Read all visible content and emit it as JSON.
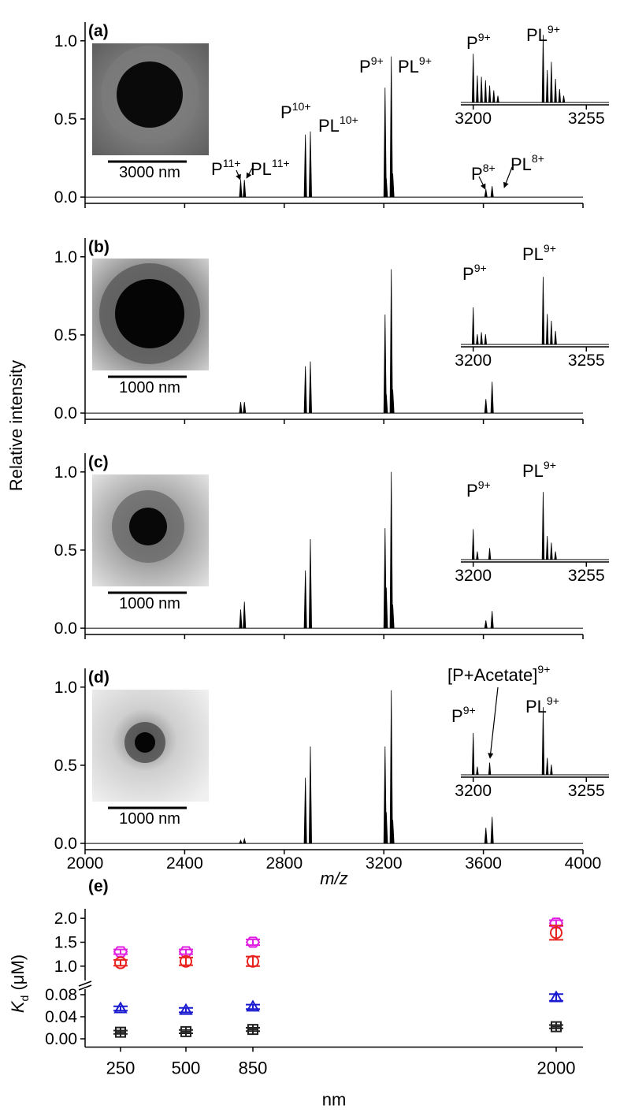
{
  "chart_data": [
    {
      "type": "stem",
      "panel_label": "(a)",
      "image_scale_bar": "3000 nm",
      "color": "#000000",
      "x": [
        2625,
        2640,
        2885,
        2905,
        3205,
        3210,
        3230,
        3236,
        3610,
        3635
      ],
      "values": [
        0.11,
        0.11,
        0.4,
        0.42,
        0.7,
        0.12,
        0.9,
        0.15,
        0.05,
        0.07
      ],
      "xlim": [
        2000,
        4000
      ],
      "xticks": [
        2000,
        2400,
        2800,
        3200,
        3600,
        4000
      ],
      "xtick_labels": false,
      "ylim": [
        -0.04,
        1.12
      ],
      "yticks": [
        {
          "value": 0,
          "label": "0.0"
        },
        0.5,
        {
          "value": 1,
          "label": "1.0"
        }
      ],
      "annotations": [
        {
          "text": "P",
          "sup": "11+"
        },
        {
          "text": "PL",
          "sup": "11+"
        },
        {
          "text": "P",
          "sup": "10+"
        },
        {
          "text": "PL",
          "sup": "10+"
        },
        {
          "text": "P",
          "sup": "9+"
        },
        {
          "text": "PL",
          "sup": "9+"
        },
        {
          "text": "P",
          "sup": "8+"
        },
        {
          "text": "PL",
          "sup": "8+"
        }
      ]
    },
    {
      "type": "stem",
      "color": "#000000",
      "x": [
        3200,
        3202,
        3204,
        3206,
        3208,
        3210,
        3212,
        3234,
        3236,
        3238,
        3240,
        3242,
        3244
      ],
      "values": [
        0.72,
        0.4,
        0.38,
        0.33,
        0.25,
        0.18,
        0.1,
        1.0,
        0.48,
        0.6,
        0.35,
        0.2,
        0.1
      ],
      "xlim": [
        3194,
        3266
      ],
      "xticks": [
        3200,
        3255
      ],
      "ylim": [
        0,
        1.05
      ],
      "annotations": [
        {
          "text": "P",
          "sup": "9+"
        },
        {
          "text": "PL",
          "sup": "9+"
        }
      ]
    },
    {
      "type": "stem",
      "panel_label": "(b)",
      "image_scale_bar": "1000 nm",
      "color": "#000000",
      "ylabel": "Relative intensity",
      "x": [
        2625,
        2640,
        2885,
        2905,
        3205,
        3210,
        3230,
        3236,
        3610,
        3635
      ],
      "values": [
        0.07,
        0.07,
        0.3,
        0.33,
        0.63,
        0.12,
        0.92,
        0.15,
        0.09,
        0.2
      ],
      "xlim": [
        2000,
        4000
      ],
      "xticks": [
        2000,
        2400,
        2800,
        3200,
        3600,
        4000
      ],
      "xtick_labels": false,
      "ylim": [
        -0.04,
        1.12
      ],
      "yticks": [
        {
          "value": 0,
          "label": "0.0"
        },
        0.5,
        {
          "value": 1,
          "label": "1.0"
        }
      ]
    },
    {
      "type": "stem",
      "color": "#000000",
      "x": [
        3200,
        3202,
        3204,
        3206,
        3234,
        3236,
        3238,
        3240
      ],
      "values": [
        0.55,
        0.15,
        0.18,
        0.15,
        1.0,
        0.45,
        0.35,
        0.2
      ],
      "xlim": [
        3194,
        3266
      ],
      "xticks": [
        3200,
        3255
      ],
      "ylim": [
        0,
        1.05
      ],
      "annotations": [
        {
          "text": "P",
          "sup": "9+"
        },
        {
          "text": "PL",
          "sup": "9+"
        }
      ]
    },
    {
      "type": "stem",
      "panel_label": "(c)",
      "image_scale_bar": "1000 nm",
      "color": "#000000",
      "x": [
        2625,
        2640,
        2885,
        2905,
        3205,
        3210,
        3230,
        3236,
        3610,
        3635
      ],
      "values": [
        0.12,
        0.17,
        0.37,
        0.57,
        0.64,
        0.26,
        1.0,
        0.15,
        0.05,
        0.11
      ],
      "xlim": [
        2000,
        4000
      ],
      "xticks": [
        2000,
        2400,
        2800,
        3200,
        3600,
        4000
      ],
      "xtick_labels": false,
      "ylim": [
        -0.04,
        1.12
      ],
      "yticks": [
        {
          "value": 0,
          "label": "0.0"
        },
        0.5,
        {
          "value": 1,
          "label": "1.0"
        }
      ]
    },
    {
      "type": "stem",
      "color": "#000000",
      "x": [
        3200,
        3202,
        3208,
        3234,
        3236,
        3238,
        3240
      ],
      "values": [
        0.45,
        0.12,
        0.17,
        1.0,
        0.35,
        0.25,
        0.12
      ],
      "xlim": [
        3194,
        3266
      ],
      "xticks": [
        3200,
        3255
      ],
      "ylim": [
        0,
        1.05
      ],
      "annotations": [
        {
          "text": "P",
          "sup": "9+"
        },
        {
          "text": "PL",
          "sup": "9+"
        }
      ]
    },
    {
      "type": "stem",
      "panel_label": "(d)",
      "image_scale_bar": "1000 nm",
      "color": "#000000",
      "xlabel": "m/z",
      "x": [
        2625,
        2640,
        2885,
        2905,
        3205,
        3210,
        3230,
        3236,
        3610,
        3635
      ],
      "values": [
        0.02,
        0.03,
        0.42,
        0.62,
        0.62,
        0.2,
        0.98,
        0.15,
        0.1,
        0.17
      ],
      "xlim": [
        2000,
        4000
      ],
      "xticks": [
        2000,
        2400,
        2800,
        3200,
        3600,
        4000
      ],
      "xtick_labels": true,
      "ylim": [
        -0.04,
        1.12
      ],
      "yticks": [
        {
          "value": 0,
          "label": "0.0"
        },
        0.5,
        {
          "value": 1,
          "label": "1.0"
        }
      ]
    },
    {
      "type": "stem",
      "color": "#000000",
      "x": [
        3200,
        3202,
        3208,
        3234,
        3236,
        3238
      ],
      "values": [
        0.62,
        0.12,
        0.18,
        1.0,
        0.25,
        0.15
      ],
      "xlim": [
        3194,
        3266
      ],
      "xticks": [
        3200,
        3255
      ],
      "ylim": [
        0,
        1.05
      ],
      "annotations": [
        {
          "text": "[P+Acetate]",
          "sup": "9+"
        },
        {
          "text": "P",
          "sup": "9+"
        },
        {
          "text": "PL",
          "sup": "9+"
        }
      ]
    },
    {
      "type": "scatter",
      "panel_label": "(e)",
      "ylabel": {
        "text": "K",
        "sub": "d",
        "unit": " (μM)"
      },
      "ylim": [
        0.7,
        2.2
      ],
      "yticks": [
        {
          "value": 1,
          "label": "1.0"
        },
        1.5,
        {
          "value": 2,
          "label": "2.0"
        }
      ],
      "series": [
        {
          "color": "#e020e0",
          "marker": "hexagon",
          "values": [
            1.3,
            1.3,
            1.5,
            1.9
          ],
          "errors": [
            0.05,
            0.05,
            0.06,
            0.06
          ]
        },
        {
          "color": "#e8231f",
          "marker": "circle",
          "values": [
            1.07,
            1.1,
            1.1,
            1.7
          ],
          "errors": [
            0.06,
            0.08,
            0.1,
            0.15
          ]
        }
      ]
    },
    {
      "type": "scatter",
      "xlabel": "nm",
      "categories": [
        "250",
        "500",
        "850",
        "2000"
      ],
      "ylim": [
        -0.015,
        0.09
      ],
      "yticks": [
        {
          "value": 0,
          "label": "0.00"
        },
        0.04,
        0.08
      ],
      "series": [
        {
          "color": "#1a1ad0",
          "marker": "triangle",
          "values": [
            0.055,
            0.052,
            0.058,
            0.075
          ],
          "errors": [
            0.004,
            0.004,
            0.004,
            0.006
          ]
        },
        {
          "color": "#222222",
          "marker": "square",
          "values": [
            0.012,
            0.013,
            0.017,
            0.022
          ],
          "errors": [
            0.003,
            0.003,
            0.003,
            0.003
          ]
        }
      ]
    }
  ]
}
